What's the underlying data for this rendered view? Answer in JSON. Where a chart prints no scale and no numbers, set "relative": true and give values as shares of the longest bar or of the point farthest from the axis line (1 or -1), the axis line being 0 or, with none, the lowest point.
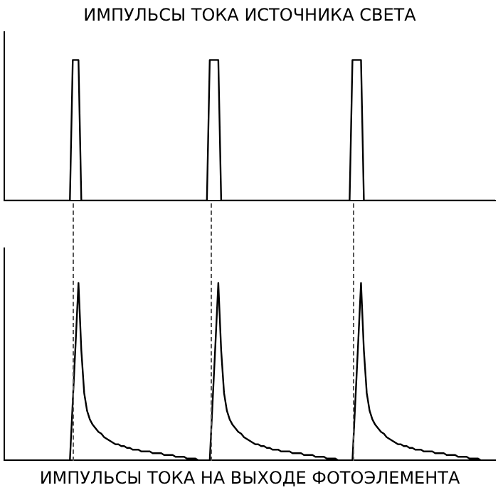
{
  "chart_data": [
    {
      "type": "line",
      "title": "ИМПУЛЬСЫ ТОКА ИСТОЧНИКА СВЕТА",
      "relative": true,
      "categories": [
        null,
        null,
        null,
        null,
        null,
        null,
        null,
        null,
        null,
        null,
        null,
        null,
        null,
        null,
        null,
        null,
        null,
        null,
        null,
        null,
        null,
        null,
        null,
        null,
        null,
        null,
        null,
        null,
        null,
        null,
        null,
        null,
        null,
        null,
        null,
        null,
        null,
        null,
        null,
        null,
        null,
        null,
        null,
        null,
        null,
        null,
        null,
        null,
        null,
        null,
        null,
        null,
        null,
        null,
        null,
        null,
        null,
        null,
        null,
        null,
        null,
        null,
        null,
        null,
        null,
        null,
        null,
        null,
        null,
        null,
        null,
        null,
        null,
        null,
        null,
        null,
        null,
        null,
        null,
        null,
        null,
        null,
        null,
        null,
        null,
        null,
        null,
        null,
        null,
        null,
        null,
        null,
        null,
        null,
        null,
        null,
        null,
        null,
        null,
        null,
        null,
        null,
        null,
        null,
        null,
        null,
        null,
        null,
        null,
        null,
        null,
        null,
        null,
        null,
        null,
        null,
        null,
        null,
        null,
        null,
        null,
        null,
        null,
        null,
        null,
        null,
        null,
        null,
        null,
        null,
        null,
        null,
        null,
        null,
        null,
        null,
        null,
        null,
        null,
        null,
        null,
        null,
        null,
        null,
        null,
        null,
        null,
        null,
        null,
        null,
        null,
        null,
        null,
        null,
        null,
        null,
        null,
        null,
        null,
        null,
        null,
        null,
        null,
        null,
        null,
        null,
        null,
        null,
        null,
        null,
        null,
        null,
        null
      ],
      "series": [
        {
          "color": "#000000",
          "values": [
            0,
            0,
            0,
            0,
            0,
            0,
            0,
            0,
            0,
            0,
            0,
            0,
            0,
            0,
            0,
            0,
            0,
            0,
            0,
            0,
            0,
            0,
            0,
            0,
            1,
            1,
            1,
            0,
            0,
            0,
            0,
            0,
            0,
            0,
            0,
            0,
            0,
            0,
            0,
            0,
            0,
            0,
            0,
            0,
            0,
            0,
            0,
            0,
            0,
            0,
            0,
            0,
            0,
            0,
            0,
            0,
            0,
            0,
            0,
            0,
            0,
            0,
            0,
            0,
            0,
            0,
            0,
            0,
            0,
            0,
            0,
            0,
            1,
            1,
            1,
            1,
            0,
            0,
            0,
            0,
            0,
            0,
            0,
            0,
            0,
            0,
            0,
            0,
            0,
            0,
            0,
            0,
            0,
            0,
            0,
            0,
            0,
            0,
            0,
            0,
            0,
            0,
            0,
            0,
            0,
            0,
            0,
            0,
            0,
            0,
            0,
            0,
            0,
            0,
            0,
            0,
            0,
            0,
            0,
            0,
            0,
            0,
            1,
            1,
            1,
            1,
            0,
            0,
            0,
            0,
            0,
            0,
            0,
            0,
            0,
            0,
            0,
            0,
            0,
            0,
            0,
            0,
            0,
            0,
            0,
            0,
            0,
            0,
            0,
            0,
            0,
            0,
            0,
            0,
            0,
            0,
            0,
            0,
            0,
            0,
            0,
            0,
            0,
            0,
            0,
            0,
            0,
            0,
            0,
            0,
            0,
            0,
            0
          ]
        }
      ]
    },
    {
      "type": "line",
      "title": "ИМПУЛЬСЫ ТОКА НА ВЫХОДЕ ФОТОЭЛЕМЕНТА",
      "relative": true,
      "categories": [
        null,
        null,
        null,
        null,
        null,
        null,
        null,
        null,
        null,
        null,
        null,
        null,
        null,
        null,
        null,
        null,
        null,
        null,
        null,
        null,
        null,
        null,
        null,
        null,
        null,
        null,
        null,
        null,
        null,
        null,
        null,
        null,
        null,
        null,
        null,
        null,
        null,
        null,
        null,
        null,
        null,
        null,
        null,
        null,
        null,
        null,
        null,
        null,
        null,
        null,
        null,
        null,
        null,
        null,
        null,
        null,
        null,
        null,
        null,
        null,
        null,
        null,
        null,
        null,
        null,
        null,
        null,
        null,
        null,
        null,
        null,
        null,
        null,
        null,
        null,
        null,
        null,
        null,
        null,
        null,
        null,
        null,
        null,
        null,
        null,
        null,
        null,
        null,
        null,
        null,
        null,
        null,
        null,
        null,
        null,
        null,
        null,
        null,
        null,
        null,
        null,
        null,
        null,
        null,
        null,
        null,
        null,
        null,
        null,
        null,
        null,
        null,
        null,
        null,
        null,
        null,
        null,
        null,
        null,
        null,
        null,
        null,
        null,
        null,
        null,
        null,
        null,
        null,
        null,
        null,
        null,
        null,
        null,
        null,
        null,
        null,
        null,
        null,
        null,
        null,
        null,
        null,
        null,
        null,
        null,
        null,
        null,
        null,
        null,
        null,
        null,
        null,
        null,
        null,
        null,
        null,
        null,
        null,
        null,
        null,
        null,
        null,
        null,
        null,
        null,
        null,
        null,
        null,
        null,
        null,
        null,
        null,
        null
      ],
      "series": [
        {
          "color": "#000000",
          "values": [
            0,
            0,
            0,
            0,
            0,
            0,
            0,
            0,
            0,
            0,
            0,
            0,
            0,
            0,
            0,
            0,
            0,
            0,
            0,
            0,
            0,
            0,
            0,
            0,
            0.33,
            0.66,
            1,
            0.62,
            0.38,
            0.28,
            0.23,
            0.2,
            0.18,
            0.16,
            0.15,
            0.13,
            0.12,
            0.11,
            0.1,
            0.09,
            0.09,
            0.08,
            0.08,
            0.07,
            0.07,
            0.06,
            0.06,
            0.06,
            0.05,
            0.05,
            0.05,
            0.05,
            0.04,
            0.04,
            0.04,
            0.04,
            0.03,
            0.03,
            0.03,
            0.03,
            0.02,
            0.02,
            0.02,
            0.02,
            0.01,
            0.01,
            0.01,
            0.01,
            0,
            0,
            0,
            0,
            0,
            0.33,
            0.66,
            1,
            0.62,
            0.38,
            0.28,
            0.23,
            0.2,
            0.18,
            0.16,
            0.15,
            0.13,
            0.12,
            0.11,
            0.1,
            0.09,
            0.09,
            0.08,
            0.08,
            0.07,
            0.07,
            0.06,
            0.06,
            0.06,
            0.05,
            0.05,
            0.05,
            0.05,
            0.04,
            0.04,
            0.04,
            0.04,
            0.03,
            0.03,
            0.03,
            0.03,
            0.02,
            0.02,
            0.02,
            0.02,
            0.01,
            0.01,
            0.01,
            0.01,
            0,
            0,
            0,
            0,
            0,
            0,
            0.33,
            0.66,
            1,
            0.62,
            0.38,
            0.28,
            0.23,
            0.2,
            0.18,
            0.16,
            0.15,
            0.13,
            0.12,
            0.11,
            0.1,
            0.09,
            0.09,
            0.08,
            0.08,
            0.07,
            0.07,
            0.06,
            0.06,
            0.06,
            0.05,
            0.05,
            0.05,
            0.05,
            0.04,
            0.04,
            0.04,
            0.04,
            0.03,
            0.03,
            0.03,
            0.03,
            0.02,
            0.02,
            0.02,
            0.02,
            0.01,
            0.01,
            0.01,
            0.01,
            0,
            0,
            0,
            0,
            0,
            0
          ]
        }
      ]
    }
  ]
}
